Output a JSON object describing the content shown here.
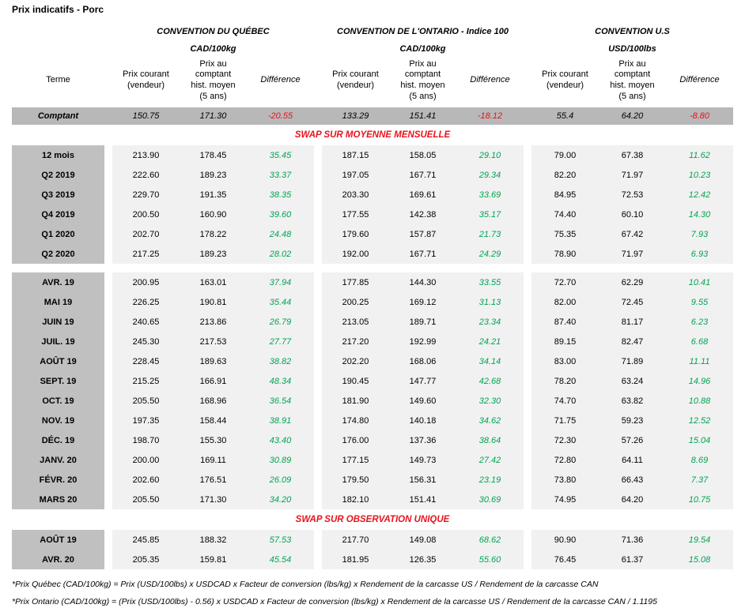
{
  "title": "Prix indicatifs - Porc",
  "colors": {
    "red": "#e8131d",
    "green": "#00a550",
    "term_bg": "#c0c0c0",
    "comptant_bg": "#b8b8b8",
    "cell_bg": "#f1f1f2"
  },
  "groups": [
    {
      "name": "CONVENTION DU QUÉBEC",
      "unit": "CAD/100kg"
    },
    {
      "name": "CONVENTION DE L'ONTARIO - Indice 100",
      "unit": "CAD/100kg"
    },
    {
      "name": "CONVENTION U.S",
      "unit": "USD/100lbs"
    }
  ],
  "headers": {
    "terme": "Terme",
    "current": "Prix courant\n(vendeur)",
    "hist": "Prix au\ncomptant\nhist. moyen\n(5 ans)",
    "diff": "Différence"
  },
  "rows": [
    {
      "type": "comptant",
      "terme": "Comptant",
      "v": [
        "150.75",
        "171.30",
        "-20.55",
        "133.29",
        "151.41",
        "-18.12",
        "55.4",
        "64.20",
        "-8.80"
      ]
    },
    {
      "type": "section",
      "label": "SWAP SUR MOYENNE MENSUELLE"
    },
    {
      "type": "data",
      "terme": "12 mois",
      "v": [
        "213.90",
        "178.45",
        "35.45",
        "187.15",
        "158.05",
        "29.10",
        "79.00",
        "67.38",
        "11.62"
      ]
    },
    {
      "type": "data",
      "terme": "Q2 2019",
      "v": [
        "222.60",
        "189.23",
        "33.37",
        "197.05",
        "167.71",
        "29.34",
        "82.20",
        "71.97",
        "10.23"
      ]
    },
    {
      "type": "data",
      "terme": "Q3 2019",
      "v": [
        "229.70",
        "191.35",
        "38.35",
        "203.30",
        "169.61",
        "33.69",
        "84.95",
        "72.53",
        "12.42"
      ]
    },
    {
      "type": "data",
      "terme": "Q4 2019",
      "v": [
        "200.50",
        "160.90",
        "39.60",
        "177.55",
        "142.38",
        "35.17",
        "74.40",
        "60.10",
        "14.30"
      ]
    },
    {
      "type": "data",
      "terme": "Q1 2020",
      "v": [
        "202.70",
        "178.22",
        "24.48",
        "179.60",
        "157.87",
        "21.73",
        "75.35",
        "67.42",
        "7.93"
      ]
    },
    {
      "type": "data",
      "terme": "Q2 2020",
      "v": [
        "217.25",
        "189.23",
        "28.02",
        "192.00",
        "167.71",
        "24.29",
        "78.90",
        "71.97",
        "6.93"
      ]
    },
    {
      "type": "gap"
    },
    {
      "type": "data",
      "terme": "AVR. 19",
      "v": [
        "200.95",
        "163.01",
        "37.94",
        "177.85",
        "144.30",
        "33.55",
        "72.70",
        "62.29",
        "10.41"
      ]
    },
    {
      "type": "data",
      "terme": "MAI 19",
      "v": [
        "226.25",
        "190.81",
        "35.44",
        "200.25",
        "169.12",
        "31.13",
        "82.00",
        "72.45",
        "9.55"
      ]
    },
    {
      "type": "data",
      "terme": "JUIN 19",
      "v": [
        "240.65",
        "213.86",
        "26.79",
        "213.05",
        "189.71",
        "23.34",
        "87.40",
        "81.17",
        "6.23"
      ]
    },
    {
      "type": "data",
      "terme": "JUIL. 19",
      "v": [
        "245.30",
        "217.53",
        "27.77",
        "217.20",
        "192.99",
        "24.21",
        "89.15",
        "82.47",
        "6.68"
      ]
    },
    {
      "type": "data",
      "terme": "AOÛT 19",
      "v": [
        "228.45",
        "189.63",
        "38.82",
        "202.20",
        "168.06",
        "34.14",
        "83.00",
        "71.89",
        "11.11"
      ]
    },
    {
      "type": "data",
      "terme": "SEPT. 19",
      "v": [
        "215.25",
        "166.91",
        "48.34",
        "190.45",
        "147.77",
        "42.68",
        "78.20",
        "63.24",
        "14.96"
      ]
    },
    {
      "type": "data",
      "terme": "OCT. 19",
      "v": [
        "205.50",
        "168.96",
        "36.54",
        "181.90",
        "149.60",
        "32.30",
        "74.70",
        "63.82",
        "10.88"
      ]
    },
    {
      "type": "data",
      "terme": "NOV. 19",
      "v": [
        "197.35",
        "158.44",
        "38.91",
        "174.80",
        "140.18",
        "34.62",
        "71.75",
        "59.23",
        "12.52"
      ]
    },
    {
      "type": "data",
      "terme": "DÉC. 19",
      "v": [
        "198.70",
        "155.30",
        "43.40",
        "176.00",
        "137.36",
        "38.64",
        "72.30",
        "57.26",
        "15.04"
      ]
    },
    {
      "type": "data",
      "terme": "JANV. 20",
      "v": [
        "200.00",
        "169.11",
        "30.89",
        "177.15",
        "149.73",
        "27.42",
        "72.80",
        "64.11",
        "8.69"
      ]
    },
    {
      "type": "data",
      "terme": "FÉVR. 20",
      "v": [
        "202.60",
        "176.51",
        "26.09",
        "179.50",
        "156.31",
        "23.19",
        "73.80",
        "66.43",
        "7.37"
      ]
    },
    {
      "type": "data",
      "terme": "MARS 20",
      "v": [
        "205.50",
        "171.30",
        "34.20",
        "182.10",
        "151.41",
        "30.69",
        "74.95",
        "64.20",
        "10.75"
      ]
    },
    {
      "type": "section",
      "label": "SWAP SUR OBSERVATION UNIQUE"
    },
    {
      "type": "data",
      "terme": "AOÛT 19",
      "v": [
        "245.85",
        "188.32",
        "57.53",
        "217.70",
        "149.08",
        "68.62",
        "90.90",
        "71.36",
        "19.54"
      ]
    },
    {
      "type": "data",
      "terme": "AVR. 20",
      "v": [
        "205.35",
        "159.81",
        "45.54",
        "181.95",
        "126.35",
        "55.60",
        "76.45",
        "61.37",
        "15.08"
      ]
    }
  ],
  "footnotes": [
    "*Prix Québec (CAD/100kg) = Prix (USD/100lbs) x USDCAD x Facteur de conversion (lbs/kg) x Rendement de la carcasse US / Rendement de la carcasse CAN",
    "*Prix Ontario (CAD/100kg) = (Prix (USD/100lbs) - 0.56) x USDCAD x Facteur de conversion (lbs/kg) x Rendement de la carcasse US / Rendement de la carcasse CAN / 1.1195"
  ]
}
